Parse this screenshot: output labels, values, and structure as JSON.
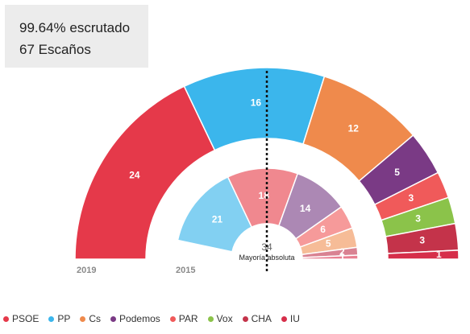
{
  "status": {
    "scrutiny": "99.64% escrutado",
    "seats_total": "67 Escaños"
  },
  "chart_data": {
    "type": "parliament",
    "total_seats": 67,
    "majority": "34",
    "majority_label": "Mayoría absoluta",
    "rings": [
      {
        "year": "2019",
        "seats": [
          {
            "party": "PSOE",
            "value": 24,
            "color": "#e5394a"
          },
          {
            "party": "PP",
            "value": 16,
            "color": "#3bb6ec"
          },
          {
            "party": "Cs",
            "value": 12,
            "color": "#ef8a4c"
          },
          {
            "party": "Podemos",
            "value": 5,
            "color": "#7a3a85"
          },
          {
            "party": "PAR",
            "value": 3,
            "color": "#f05a5a"
          },
          {
            "party": "Vox",
            "value": 3,
            "color": "#8bc34a"
          },
          {
            "party": "CHA",
            "value": 3,
            "color": "#c4334a"
          },
          {
            "party": "IU",
            "value": 1,
            "color": "#d62e4a"
          }
        ]
      },
      {
        "year": "2015",
        "seats": [
          {
            "party": "PP",
            "value": 21,
            "color": "#82d0f2"
          },
          {
            "party": "PSOE",
            "value": 18,
            "color": "#f0888f"
          },
          {
            "party": "Podemos",
            "value": 14,
            "color": "#ac88b4"
          },
          {
            "party": "PAR",
            "value": 6,
            "color": "#f69a9a"
          },
          {
            "party": "Cs",
            "value": 5,
            "color": "#f6bc97"
          },
          {
            "party": "CHA",
            "value": 2,
            "color": "#d98292"
          },
          {
            "party": "IU",
            "value": 1,
            "color": "#e87f91"
          }
        ]
      }
    ]
  },
  "legend": [
    {
      "label": "PSOE",
      "color": "#e5394a"
    },
    {
      "label": "PP",
      "color": "#3bb6ec"
    },
    {
      "label": "Cs",
      "color": "#ef8a4c"
    },
    {
      "label": "Podemos",
      "color": "#7a3a85"
    },
    {
      "label": "PAR",
      "color": "#f05a5a"
    },
    {
      "label": "Vox",
      "color": "#8bc34a"
    },
    {
      "label": "CHA",
      "color": "#c4334a"
    },
    {
      "label": "IU",
      "color": "#d62e4a"
    }
  ]
}
